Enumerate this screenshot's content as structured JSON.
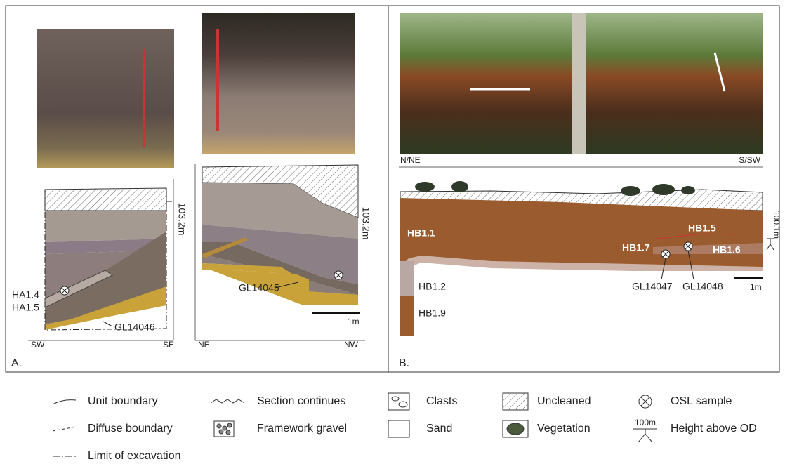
{
  "panel_a": {
    "label": "A.",
    "section_1": {
      "height": "103.2m",
      "labels": [
        "HA1.4",
        "HA1.5"
      ],
      "sample": "GL14046",
      "left": "SW",
      "right": "SE"
    },
    "section_2": {
      "height": "103.2m",
      "sample": "GL14045",
      "scale": "1m",
      "left": "NE",
      "right": "NW"
    }
  },
  "panel_b": {
    "label": "B.",
    "photo_left": "N/NE",
    "photo_right": "S/SW",
    "units": [
      "HB1.1",
      "HB1.5",
      "HB1.7",
      "HB1.6",
      "HB1.2",
      "HB1.9"
    ],
    "samples": [
      "GL14047",
      "GL14048"
    ],
    "scale": "1m",
    "height": "100.1m"
  },
  "legend": [
    {
      "label": "Unit boundary"
    },
    {
      "label": "Section continues"
    },
    {
      "label": "Clasts"
    },
    {
      "label": "Uncleaned"
    },
    {
      "label": "OSL sample"
    },
    {
      "label": "Diffuse boundary"
    },
    {
      "label": "Framework gravel"
    },
    {
      "label": "Sand"
    },
    {
      "label": "Vegetation"
    },
    {
      "label": "Height above OD",
      "symbol": "100m"
    },
    {
      "label": "Limit of excavation"
    }
  ]
}
